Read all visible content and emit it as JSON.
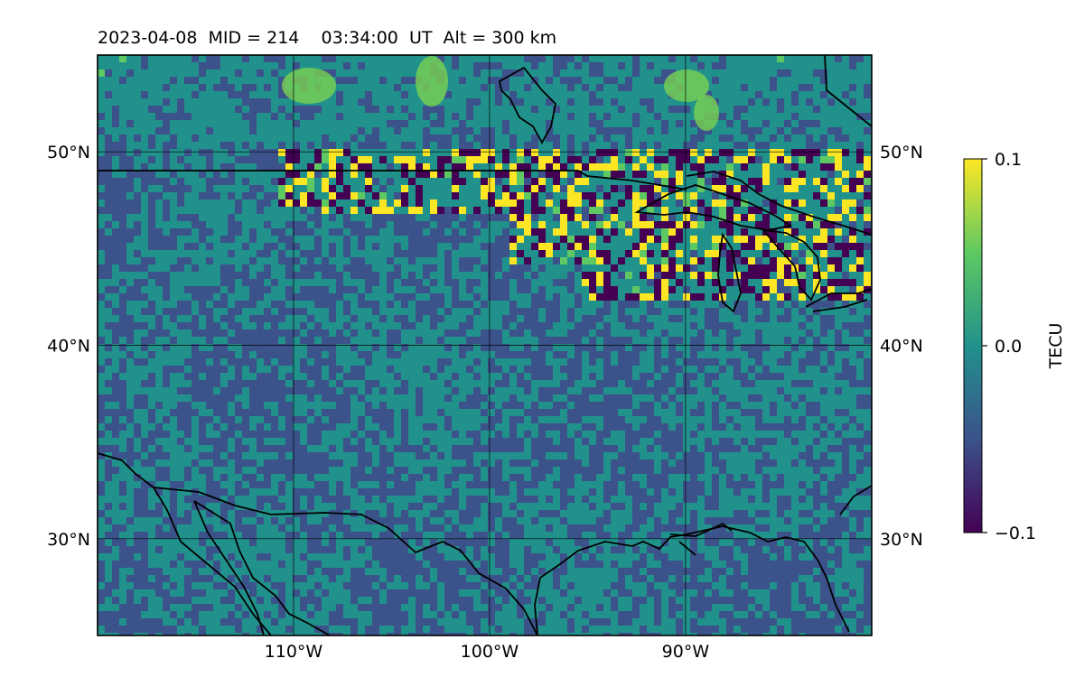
{
  "title": "2023-04-08  MID = 214    03:34:00  UT  Alt = 300 km",
  "map": {
    "lon_range": [
      -120,
      -80.5
    ],
    "lat_range": [
      25,
      55
    ],
    "gridlines": true,
    "lon_ticks": [
      {
        "value": -110,
        "label": "110°W"
      },
      {
        "value": -100,
        "label": "100°W"
      },
      {
        "value": -90,
        "label": "90°W"
      }
    ],
    "lat_ticks": [
      {
        "value": 30,
        "label": "30°N"
      },
      {
        "value": 40,
        "label": "40°N"
      },
      {
        "value": 50,
        "label": "50°N"
      }
    ]
  },
  "colorbar": {
    "label": "TECU",
    "colormap": "viridis",
    "min": -0.1,
    "max": 0.1,
    "ticks": [
      {
        "value": 0.1,
        "label": "0.1"
      },
      {
        "value": 0.0,
        "label": "0.0"
      },
      {
        "value": -0.1,
        "label": "−0.1"
      }
    ],
    "colors": [
      "#440154",
      "#3b528b",
      "#21918c",
      "#5ec962",
      "#fde725"
    ]
  }
}
